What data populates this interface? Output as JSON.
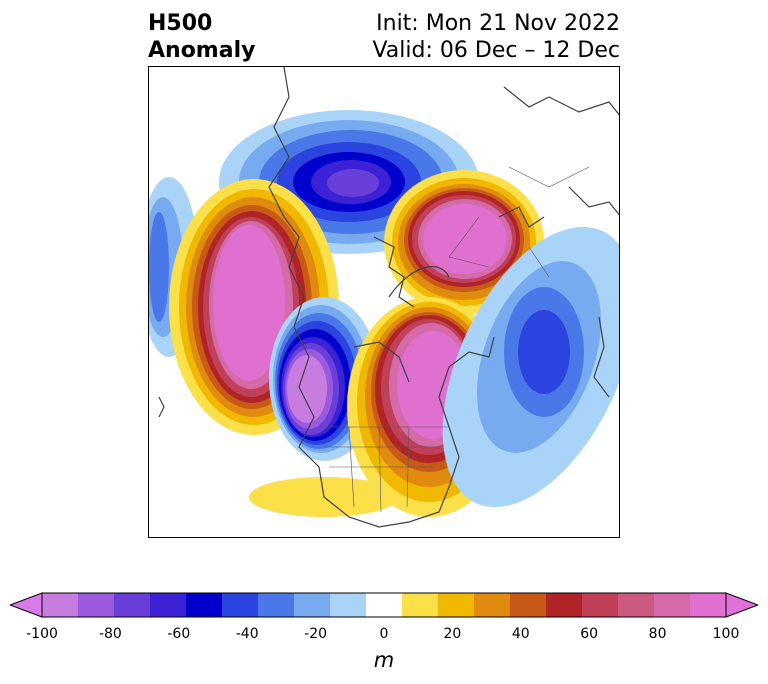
{
  "title": {
    "left_line1": "H500",
    "left_line2": "Anomaly",
    "right_line1": "Init: Mon 21 Nov 2022",
    "right_line2": "Valid: 06 Dec – 12 Dec"
  },
  "colorbar": {
    "unit": "m",
    "levels": [
      -100,
      -90,
      -80,
      -70,
      -60,
      -50,
      -40,
      -30,
      -20,
      -10,
      10,
      20,
      30,
      40,
      50,
      60,
      70,
      80,
      90,
      100
    ],
    "colors": [
      "#c77de0",
      "#9b59e0",
      "#6a3ed8",
      "#3c22d4",
      "#0000cd",
      "#2b44e0",
      "#4a78e8",
      "#78aaf0",
      "#a9d4f8",
      "#ffffff",
      "#fbe04a",
      "#f0b800",
      "#e08a10",
      "#c85a18",
      "#b02428",
      "#c0405a",
      "#cc5a80",
      "#d46aa8",
      "#e070d0"
    ],
    "low_extend_color": "#d97ae8",
    "high_extend_color": "#e070d8",
    "tick_labels": [
      "-100",
      "-80",
      "-60",
      "-40",
      "-20",
      "0",
      "20",
      "40",
      "60",
      "80",
      "100"
    ]
  },
  "map": {
    "region": "North Polar Stereographic (Northern Hemisphere)",
    "anomalies": [
      {
        "sign": "negative",
        "strength": -80,
        "location": "north of Siberia / Arctic"
      },
      {
        "sign": "positive",
        "strength": 100,
        "location": "Bering Sea / Alaska"
      },
      {
        "sign": "positive",
        "strength": 90,
        "location": "Scandinavia / Northern Europe"
      },
      {
        "sign": "negative",
        "strength": -90,
        "location": "Gulf of Alaska / West Coast"
      },
      {
        "sign": "positive",
        "strength": 90,
        "location": "Eastern Canada / Greenland"
      },
      {
        "sign": "negative",
        "strength": -50,
        "location": "Western Europe / North Atlantic"
      },
      {
        "sign": "positive",
        "strength": 20,
        "location": "Southwestern US / Mexico"
      }
    ]
  }
}
